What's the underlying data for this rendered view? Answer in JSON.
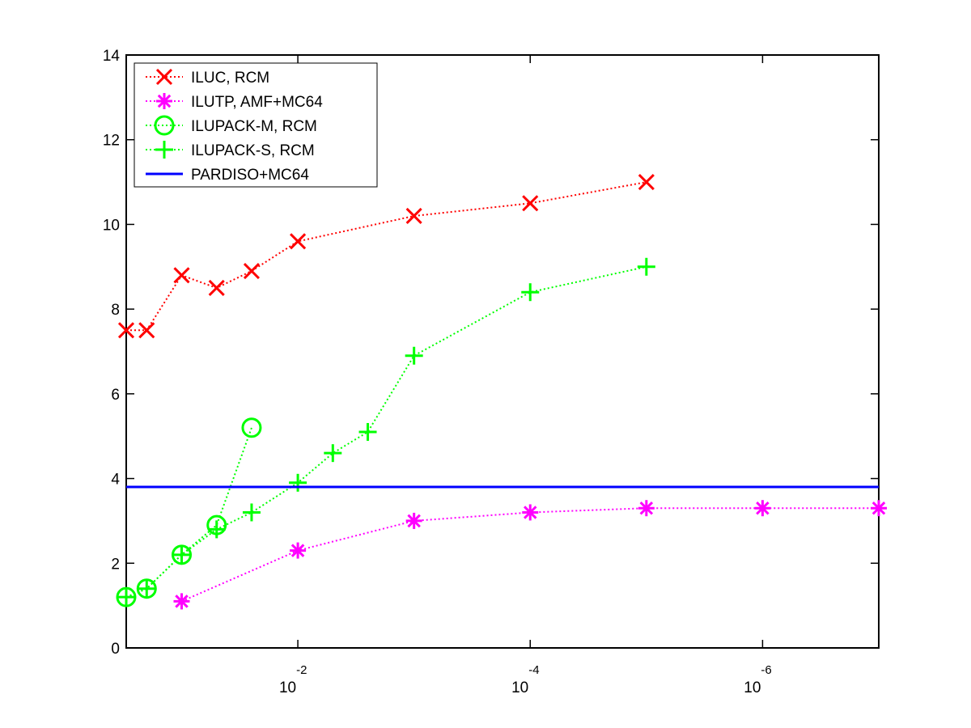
{
  "chart_data": {
    "type": "line",
    "x_scale": "log",
    "x_reversed": true,
    "x_tick_labels": [
      {
        "x": 0.01,
        "base": "10",
        "exp": "-2"
      },
      {
        "x": 0.0001,
        "base": "10",
        "exp": "-4"
      },
      {
        "x": 1e-06,
        "base": "10",
        "exp": "-6"
      }
    ],
    "xlim": [
      0.3,
      1e-07
    ],
    "ylim": [
      0,
      14
    ],
    "y_ticks": [
      0,
      2,
      4,
      6,
      8,
      10,
      12,
      14
    ],
    "y_tick_labels": [
      "0",
      "2",
      "4",
      "6",
      "8",
      "10",
      "12",
      "14"
    ],
    "grid": false,
    "legend_position": "top-left",
    "series": [
      {
        "name": "ILUC, RCM",
        "color": "#ff0000",
        "marker": "x",
        "line_style": "dotted",
        "points": [
          {
            "x": 0.3,
            "y": 7.5
          },
          {
            "x": 0.2,
            "y": 7.5
          },
          {
            "x": 0.1,
            "y": 8.8
          },
          {
            "x": 0.05,
            "y": 8.5
          },
          {
            "x": 0.025,
            "y": 8.9
          },
          {
            "x": 0.01,
            "y": 9.6
          },
          {
            "x": 0.001,
            "y": 10.2
          },
          {
            "x": 0.0001,
            "y": 10.5
          },
          {
            "x": 1e-05,
            "y": 11.0
          }
        ]
      },
      {
        "name": "ILUTP, AMF+MC64",
        "color": "#ff00ff",
        "marker": "asterisk",
        "line_style": "dotted",
        "points": [
          {
            "x": 0.1,
            "y": 1.1
          },
          {
            "x": 0.01,
            "y": 2.3
          },
          {
            "x": 0.001,
            "y": 3.0
          },
          {
            "x": 0.0001,
            "y": 3.2
          },
          {
            "x": 1e-05,
            "y": 3.3
          },
          {
            "x": 1e-06,
            "y": 3.3
          },
          {
            "x": 1e-07,
            "y": 3.3
          }
        ]
      },
      {
        "name": "ILUPACK-M, RCM",
        "color": "#00ff00",
        "marker": "circle",
        "line_style": "dotted",
        "points": [
          {
            "x": 0.3,
            "y": 1.2
          },
          {
            "x": 0.2,
            "y": 1.4
          },
          {
            "x": 0.1,
            "y": 2.2
          },
          {
            "x": 0.05,
            "y": 2.9
          },
          {
            "x": 0.025,
            "y": 5.2
          }
        ]
      },
      {
        "name": "ILUPACK-S, RCM",
        "color": "#00ff00",
        "marker": "plus",
        "line_style": "dotted",
        "points": [
          {
            "x": 0.3,
            "y": 1.2
          },
          {
            "x": 0.2,
            "y": 1.4
          },
          {
            "x": 0.1,
            "y": 2.2
          },
          {
            "x": 0.05,
            "y": 2.8
          },
          {
            "x": 0.025,
            "y": 3.2
          },
          {
            "x": 0.01,
            "y": 3.9
          },
          {
            "x": 0.005,
            "y": 4.6
          },
          {
            "x": 0.0025,
            "y": 5.1
          },
          {
            "x": 0.001,
            "y": 6.9
          },
          {
            "x": 0.0001,
            "y": 8.4
          },
          {
            "x": 1e-05,
            "y": 9.0
          }
        ]
      },
      {
        "name": "PARDISO+MC64",
        "color": "#0000ff",
        "marker": "none",
        "line_style": "solid",
        "points": [
          {
            "x": 0.3,
            "y": 3.8
          },
          {
            "x": 1e-07,
            "y": 3.8
          }
        ]
      }
    ]
  }
}
